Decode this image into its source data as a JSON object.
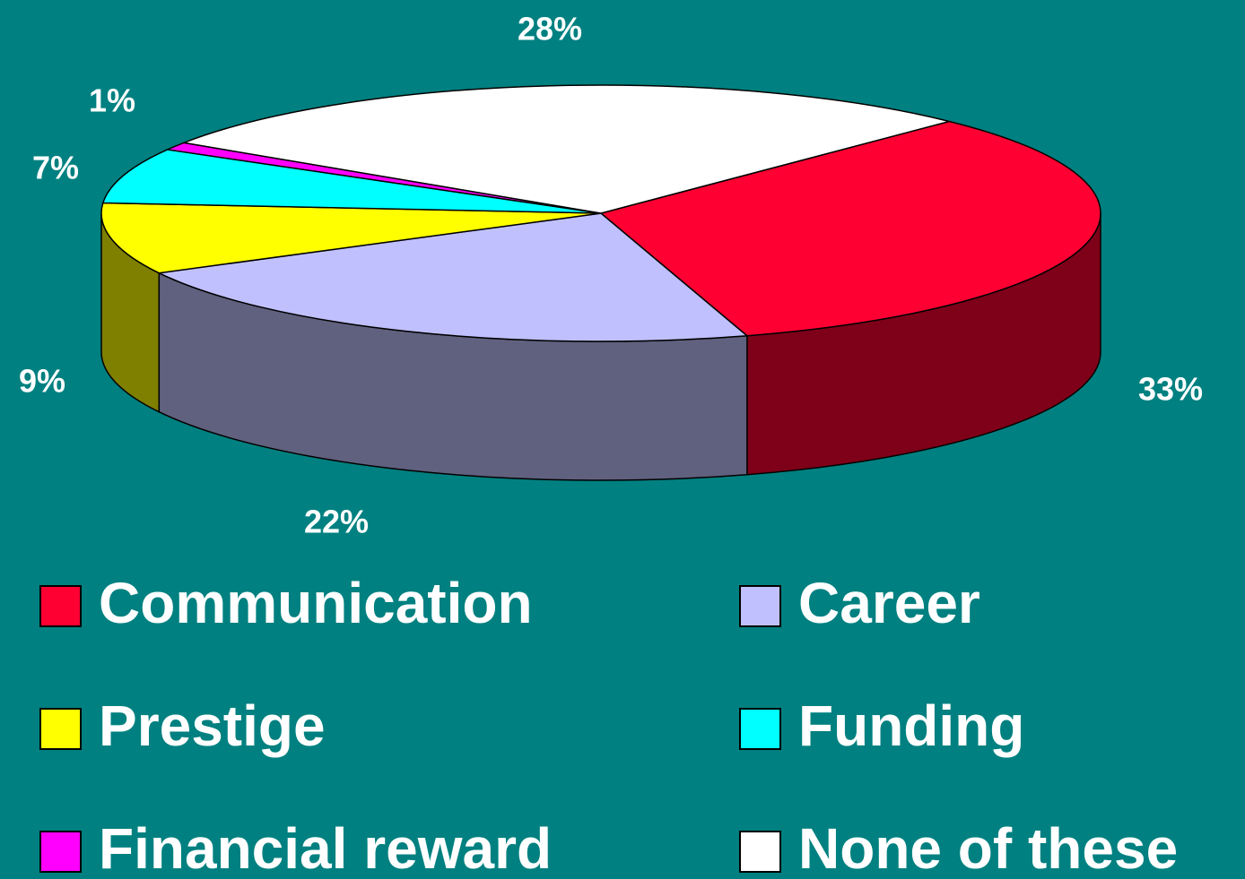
{
  "chart_data": {
    "type": "pie3d",
    "categories": [
      "Communication",
      "Career",
      "Prestige",
      "Funding",
      "Financial reward",
      "None of these"
    ],
    "values": [
      33,
      22,
      9,
      7,
      1,
      28
    ],
    "value_labels": [
      "33%",
      "22%",
      "9%",
      "7%",
      "1%",
      "28%"
    ],
    "colors": [
      "#ff0033",
      "#c0c0ff",
      "#ffff00",
      "#00ffff",
      "#ff00ff",
      "#ffffff"
    ]
  }
}
